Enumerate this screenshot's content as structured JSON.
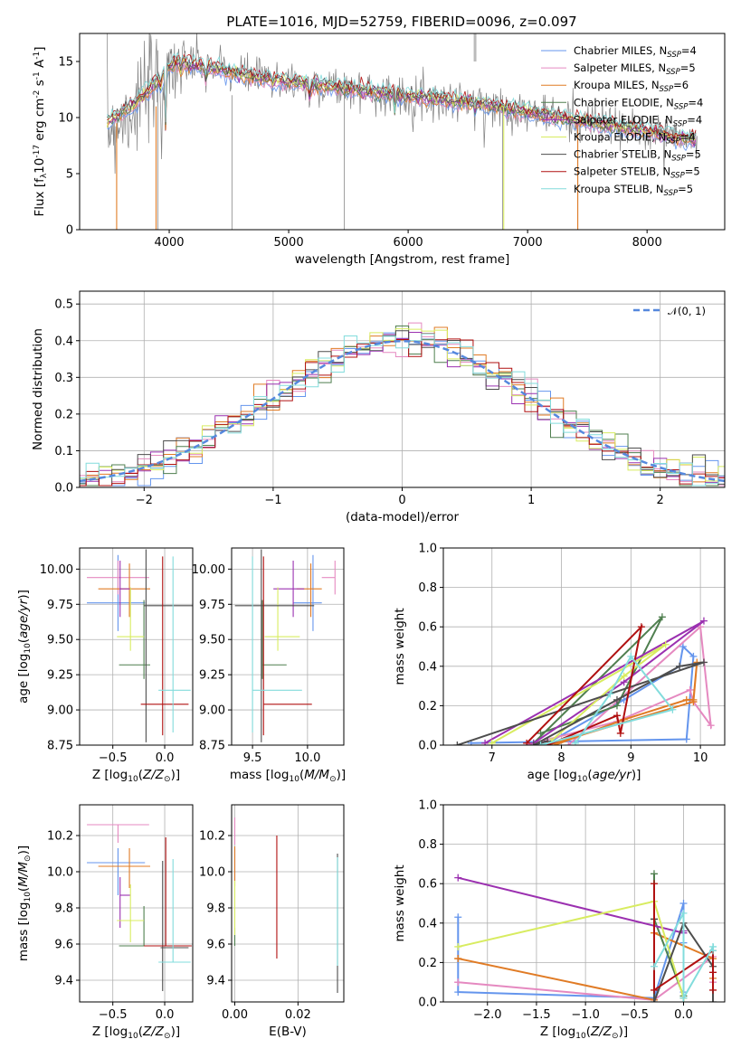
{
  "figure_title": "PLATE=1016, MJD=52759, FIBERID=0096, z=0.097",
  "series_colors": [
    "#6495ed",
    "#e589c0",
    "#e07b25",
    "#4f7f4f",
    "#9b30b0",
    "#d8ec60",
    "#4d4d4d",
    "#b01010",
    "#82dcdc"
  ],
  "chart_data": [
    {
      "id": "spectrum",
      "type": "line",
      "title": "PLATE=1016, MJD=52759, FIBERID=0096, z=0.097",
      "xlabel": "wavelength [Angstrom, rest frame]",
      "ylabel": "Flux [f$_\\lambda$10$^{-17}$ erg cm$^{-2}$ s$^{-1}$ A$^{-1}$]",
      "xlim": [
        3250,
        8650
      ],
      "ylim": [
        0,
        17.5
      ],
      "xticks": [
        4000,
        5000,
        6000,
        7000,
        8000
      ],
      "yticks": [
        0,
        5,
        10,
        15
      ],
      "grid": false,
      "legend_position": "top-right",
      "legend": [
        {
          "text": "Chabrier MILES, N",
          "sub": "SSP",
          "tail": "=4",
          "color": "#6495ed"
        },
        {
          "text": "Salpeter MILES, N",
          "sub": "SSP",
          "tail": "=5",
          "color": "#e589c0"
        },
        {
          "text": "Kroupa MILES, N",
          "sub": "SSP",
          "tail": "=6",
          "color": "#e07b25"
        },
        {
          "text": "Chabrier ELODIE, N",
          "sub": "SSP",
          "tail": "=4",
          "color": "#4f7f4f"
        },
        {
          "text": "Salpeter ELODIE, N",
          "sub": "SSP",
          "tail": "=4",
          "color": "#9b30b0"
        },
        {
          "text": "Kroupa ELODIE, N",
          "sub": "SSP",
          "tail": "=4",
          "color": "#d8ec60"
        },
        {
          "text": "Chabrier STELIB, N",
          "sub": "SSP",
          "tail": "=5",
          "color": "#4d4d4d"
        },
        {
          "text": "Salpeter STELIB, N",
          "sub": "SSP",
          "tail": "=5",
          "color": "#b01010"
        },
        {
          "text": "Kroupa STELIB, N",
          "sub": "SSP",
          "tail": "=5",
          "color": "#82dcdc"
        }
      ],
      "continuum_knots": [
        [
          3480,
          11.8
        ],
        [
          3700,
          12.5
        ],
        [
          3900,
          13.6
        ],
        [
          4050,
          15.0
        ],
        [
          4300,
          14.6
        ],
        [
          4600,
          13.8
        ],
        [
          5000,
          13.2
        ],
        [
          5500,
          12.6
        ],
        [
          6000,
          11.9
        ],
        [
          6500,
          11.4
        ],
        [
          7000,
          10.5
        ],
        [
          7500,
          9.6
        ],
        [
          8000,
          8.8
        ],
        [
          8400,
          7.9
        ]
      ]
    },
    {
      "id": "residuals",
      "type": "histogram",
      "xlabel": "(data-model)/error",
      "ylabel": "Normed distribution",
      "xlim": [
        -2.5,
        2.5
      ],
      "ylim": [
        0,
        0.535
      ],
      "xticks": [
        -2,
        -1,
        0,
        1,
        2
      ],
      "yticks": [
        0.0,
        0.1,
        0.2,
        0.3,
        0.4,
        0.5
      ],
      "grid": true,
      "legend_position": "top-right",
      "legend": [
        {
          "text": "𝒩(0, 1)",
          "color": "#5588dd",
          "style": "dashed"
        }
      ],
      "bin_width": 0.1
    },
    {
      "id": "age_vs_Z",
      "type": "errorbar",
      "xlabel": "Z [log$_{10}$($Z/Z_\\odot$)]",
      "ylabel": "age  [log$_{10}$($age/yr$)]",
      "xlim": [
        -0.82,
        0.27
      ],
      "ylim": [
        8.75,
        10.15
      ],
      "xticks": [
        -0.5,
        0.0
      ],
      "yticks": [
        8.75,
        9.0,
        9.25,
        9.5,
        9.75,
        10.0
      ],
      "grid": true,
      "points": [
        {
          "x": -0.45,
          "y": 9.76,
          "xerr": [
            0.3,
            0.26
          ],
          "yerr": [
            0.2,
            0.34
          ]
        },
        {
          "x": -0.45,
          "y": 9.94,
          "xerr": [
            0.3,
            0.3
          ],
          "yerr": [
            0.12,
            0.12
          ]
        },
        {
          "x": -0.34,
          "y": 9.86,
          "xerr": [
            0.3,
            0.2
          ],
          "yerr": [
            0.2,
            0.18
          ]
        },
        {
          "x": -0.2,
          "y": 9.32,
          "xerr": [
            0.24,
            0.06
          ],
          "yerr": [
            0.1,
            0.46
          ]
        },
        {
          "x": -0.43,
          "y": 9.86,
          "xerr": [
            0.0,
            0.1
          ],
          "yerr": [
            0.2,
            0.2
          ]
        },
        {
          "x": -0.33,
          "y": 9.52,
          "xerr": [
            0.13,
            0.13
          ],
          "yerr": [
            0.1,
            0.35
          ]
        },
        {
          "x": -0.18,
          "y": 9.74,
          "xerr": [
            0.02,
            0.45
          ],
          "yerr": [
            0.97,
            0.4
          ]
        },
        {
          "x": -0.02,
          "y": 9.04,
          "xerr": [
            0.21,
            0.25
          ],
          "yerr": [
            0.22,
            1.05
          ]
        },
        {
          "x": 0.08,
          "y": 9.14,
          "xerr": [
            0.14,
            0.17
          ],
          "yerr": [
            0.3,
            0.95
          ]
        }
      ]
    },
    {
      "id": "age_vs_mass",
      "type": "errorbar",
      "xlabel": "mass [log$_{10}$($M/M_\\odot$)]",
      "ylabel": "",
      "xlim": [
        9.31,
        10.33
      ],
      "ylim": [
        8.75,
        10.15
      ],
      "xticks": [
        9.5,
        10.0
      ],
      "yticks": [
        8.75,
        9.0,
        9.25,
        9.5,
        9.75,
        10.0
      ],
      "grid": true,
      "points": [
        {
          "x": 10.05,
          "y": 9.76,
          "xerr": [
            0.18,
            0.08
          ],
          "yerr": [
            0.2,
            0.34
          ]
        },
        {
          "x": 10.25,
          "y": 9.94,
          "xerr": [
            0.12,
            0.0
          ],
          "yerr": [
            0.12,
            0.12
          ]
        },
        {
          "x": 10.03,
          "y": 9.86,
          "xerr": [
            0.13,
            0.1
          ],
          "yerr": [
            0.2,
            0.18
          ]
        },
        {
          "x": 9.59,
          "y": 9.32,
          "xerr": [
            0.0,
            0.22
          ],
          "yerr": [
            0.1,
            0.46
          ]
        },
        {
          "x": 9.87,
          "y": 9.86,
          "xerr": [
            0.18,
            0.1
          ],
          "yerr": [
            0.2,
            0.2
          ]
        },
        {
          "x": 9.73,
          "y": 9.52,
          "xerr": [
            0.12,
            0.2
          ],
          "yerr": [
            0.1,
            0.35
          ]
        },
        {
          "x": 9.58,
          "y": 9.74,
          "xerr": [
            0.24,
            0.48
          ],
          "yerr": [
            0.97,
            0.4
          ]
        },
        {
          "x": 9.6,
          "y": 9.04,
          "xerr": [
            0.0,
            0.44
          ],
          "yerr": [
            0.22,
            1.05
          ]
        },
        {
          "x": 9.5,
          "y": 9.14,
          "xerr": [
            0.0,
            0.45
          ],
          "yerr": [
            0.3,
            0.95
          ]
        }
      ]
    },
    {
      "id": "weight_vs_age",
      "type": "line",
      "xlabel": "age  [log$_{10}$($age/yr$)]",
      "ylabel": "mass weight",
      "xlim": [
        6.3,
        10.35
      ],
      "ylim": [
        0,
        1
      ],
      "xticks": [
        7,
        8,
        9,
        10
      ],
      "yticks": [
        0.0,
        0.2,
        0.4,
        0.6,
        0.8,
        1.0
      ],
      "grid": true,
      "series": [
        {
          "x": [
            6.7,
            9.8,
            9.9,
            9.75,
            9.7,
            8.9,
            7.85
          ],
          "y": [
            0.01,
            0.03,
            0.45,
            0.5,
            0.4,
            0.23,
            0.02
          ]
        },
        {
          "x": [
            8.1,
            10.0,
            10.15,
            9.9,
            9.85,
            8.8,
            7.5
          ],
          "y": [
            0.0,
            0.6,
            0.1,
            0.22,
            0.28,
            0.12,
            0.0
          ]
        },
        {
          "x": [
            7.8,
            9.9,
            9.95,
            9.9,
            9.8,
            8.9,
            7.9
          ],
          "y": [
            0.0,
            0.22,
            0.42,
            0.23,
            0.23,
            0.13,
            0.0
          ]
        },
        {
          "x": [
            7.6,
            9.45,
            8.8,
            7.7
          ],
          "y": [
            0.01,
            0.65,
            0.2,
            0.06
          ]
        },
        {
          "x": [
            6.9,
            10.05,
            8.9,
            7.6
          ],
          "y": [
            0.01,
            0.63,
            0.32,
            0.01
          ]
        },
        {
          "x": [
            7.0,
            9.5,
            8.9,
            7.85
          ],
          "y": [
            0.01,
            0.51,
            0.35,
            0.02
          ]
        },
        {
          "x": [
            6.5,
            10.05,
            9.7,
            8.8,
            7.6,
            7.8
          ],
          "y": [
            0.0,
            0.42,
            0.4,
            0.23,
            0.0,
            0.02
          ]
        },
        {
          "x": [
            7.5,
            9.15,
            8.85,
            8.8,
            7.8
          ],
          "y": [
            0.01,
            0.6,
            0.06,
            0.15,
            0.0
          ]
        },
        {
          "x": [
            7.7,
            9.6,
            9.0,
            8.7,
            8.2
          ],
          "y": [
            0.0,
            0.18,
            0.45,
            0.26,
            0.01
          ]
        }
      ]
    },
    {
      "id": "mass_vs_Z",
      "type": "errorbar",
      "xlabel": "Z [log$_{10}$($Z/Z_\\odot$)]",
      "ylabel": "mass [log$_{10}$($M/M_\\odot$)]",
      "xlim": [
        -0.82,
        0.27
      ],
      "ylim": [
        9.28,
        10.37
      ],
      "xticks": [
        -0.5,
        0.0
      ],
      "yticks": [
        9.4,
        9.6,
        9.8,
        10.0,
        10.2
      ],
      "grid": true,
      "points": [
        {
          "x": -0.45,
          "y": 10.05,
          "xerr": [
            0.3,
            0.26
          ],
          "yerr": [
            0.18,
            0.08
          ]
        },
        {
          "x": -0.45,
          "y": 10.26,
          "xerr": [
            0.3,
            0.3
          ],
          "yerr": [
            0.1,
            0.0
          ]
        },
        {
          "x": -0.34,
          "y": 10.03,
          "xerr": [
            0.3,
            0.2
          ],
          "yerr": [
            0.12,
            0.1
          ]
        },
        {
          "x": -0.2,
          "y": 9.59,
          "xerr": [
            0.24,
            0.06
          ],
          "yerr": [
            0.0,
            0.22
          ]
        },
        {
          "x": -0.43,
          "y": 9.87,
          "xerr": [
            0.0,
            0.1
          ],
          "yerr": [
            0.18,
            0.1
          ]
        },
        {
          "x": -0.33,
          "y": 9.73,
          "xerr": [
            0.13,
            0.13
          ],
          "yerr": [
            0.12,
            0.2
          ]
        },
        {
          "x": -0.02,
          "y": 9.58,
          "xerr": [
            0.02,
            0.25
          ],
          "yerr": [
            0.24,
            0.48
          ]
        },
        {
          "x": 0.01,
          "y": 9.59,
          "xerr": [
            0.21,
            0.25
          ],
          "yerr": [
            0.0,
            0.6
          ]
        },
        {
          "x": 0.08,
          "y": 9.5,
          "xerr": [
            0.14,
            0.17
          ],
          "yerr": [
            0.0,
            0.57
          ]
        }
      ]
    },
    {
      "id": "mass_vs_ebv",
      "type": "errorbar",
      "xlabel": "E(B-V)",
      "ylabel": "",
      "xlim": [
        -0.001,
        0.0345
      ],
      "ylim": [
        9.28,
        10.37
      ],
      "xticks": [
        0.0,
        0.02
      ],
      "yticks": [
        9.4,
        9.6,
        9.8,
        10.0,
        10.2
      ],
      "grid": true,
      "points": [
        {
          "x": 0.0,
          "y": 10.05,
          "xerr": [
            0,
            0
          ],
          "yerr": [
            0.1,
            0.08
          ]
        },
        {
          "x": 0.0,
          "y": 10.25,
          "xerr": [
            0,
            0
          ],
          "yerr": [
            0.1,
            0.05
          ]
        },
        {
          "x": 0.0,
          "y": 10.04,
          "xerr": [
            0,
            0
          ],
          "yerr": [
            0.12,
            0.1
          ]
        },
        {
          "x": 0.0,
          "y": 9.59,
          "xerr": [
            0,
            0
          ],
          "yerr": [
            0.0,
            0.1
          ]
        },
        {
          "x": 0.0,
          "y": 9.87,
          "xerr": [
            0,
            0
          ],
          "yerr": [
            0.0,
            0.0
          ]
        },
        {
          "x": 0.0,
          "y": 9.75,
          "xerr": [
            0,
            0
          ],
          "yerr": [
            0.1,
            0.2
          ]
        },
        {
          "x": 0.0325,
          "y": 9.6,
          "xerr": [
            0,
            0
          ],
          "yerr": [
            0.27,
            0.5
          ]
        },
        {
          "x": 0.0133,
          "y": 9.85,
          "xerr": [
            0,
            0
          ],
          "yerr": [
            0.33,
            0.35
          ]
        },
        {
          "x": 0.0325,
          "y": 9.58,
          "xerr": [
            0,
            0
          ],
          "yerr": [
            0.1,
            0.5
          ]
        }
      ]
    },
    {
      "id": "weight_vs_Z",
      "type": "line",
      "xlabel": "Z [log$_{10}$($Z/Z_\\odot$)]",
      "ylabel": "mass weight",
      "xlim": [
        -2.45,
        0.42
      ],
      "ylim": [
        0,
        1
      ],
      "xticks": [
        -2.0,
        -1.5,
        -1.0,
        -0.5,
        0.0
      ],
      "yticks": [
        0.0,
        0.2,
        0.4,
        0.6,
        0.8,
        1.0
      ],
      "grid": true,
      "series": [
        {
          "x": [
            -2.3,
            -2.3,
            -0.3,
            0.0,
            0.0,
            0.0
          ],
          "y": [
            0.43,
            0.05,
            0.02,
            0.5,
            0.3,
            0.05
          ]
        },
        {
          "x": [
            -2.3,
            -2.3,
            -0.3,
            -0.3,
            0.3,
            0.3
          ],
          "y": [
            0.1,
            0.1,
            0.01,
            0.01,
            0.23,
            0.1
          ]
        },
        {
          "x": [
            -2.3,
            -2.3,
            -0.3,
            -0.3,
            0.3,
            0.3
          ],
          "y": [
            0.22,
            0.22,
            0.01,
            0.35,
            0.22,
            0.12
          ]
        },
        {
          "x": [
            -0.3,
            -0.3,
            0.0,
            0.0
          ],
          "y": [
            0.65,
            0.42,
            0.03,
            0.02
          ]
        },
        {
          "x": [
            -2.3,
            -0.0,
            0.0,
            0.0
          ],
          "y": [
            0.63,
            0.35,
            0.36,
            0.02
          ]
        },
        {
          "x": [
            -2.3,
            -0.3,
            0.0,
            0.0
          ],
          "y": [
            0.28,
            0.51,
            0.02,
            0.02
          ]
        },
        {
          "x": [
            -0.3,
            -0.3,
            0.0,
            0.3,
            0.3
          ],
          "y": [
            0.42,
            0.0,
            0.4,
            0.18,
            0.0
          ]
        },
        {
          "x": [
            -0.3,
            -0.3,
            0.3,
            0.3,
            0.3
          ],
          "y": [
            0.6,
            0.06,
            0.26,
            0.06,
            0.15
          ]
        },
        {
          "x": [
            -0.3,
            0.0,
            0.0,
            0.3,
            0.3
          ],
          "y": [
            0.18,
            0.45,
            0.02,
            0.28,
            0.26
          ]
        }
      ]
    }
  ]
}
